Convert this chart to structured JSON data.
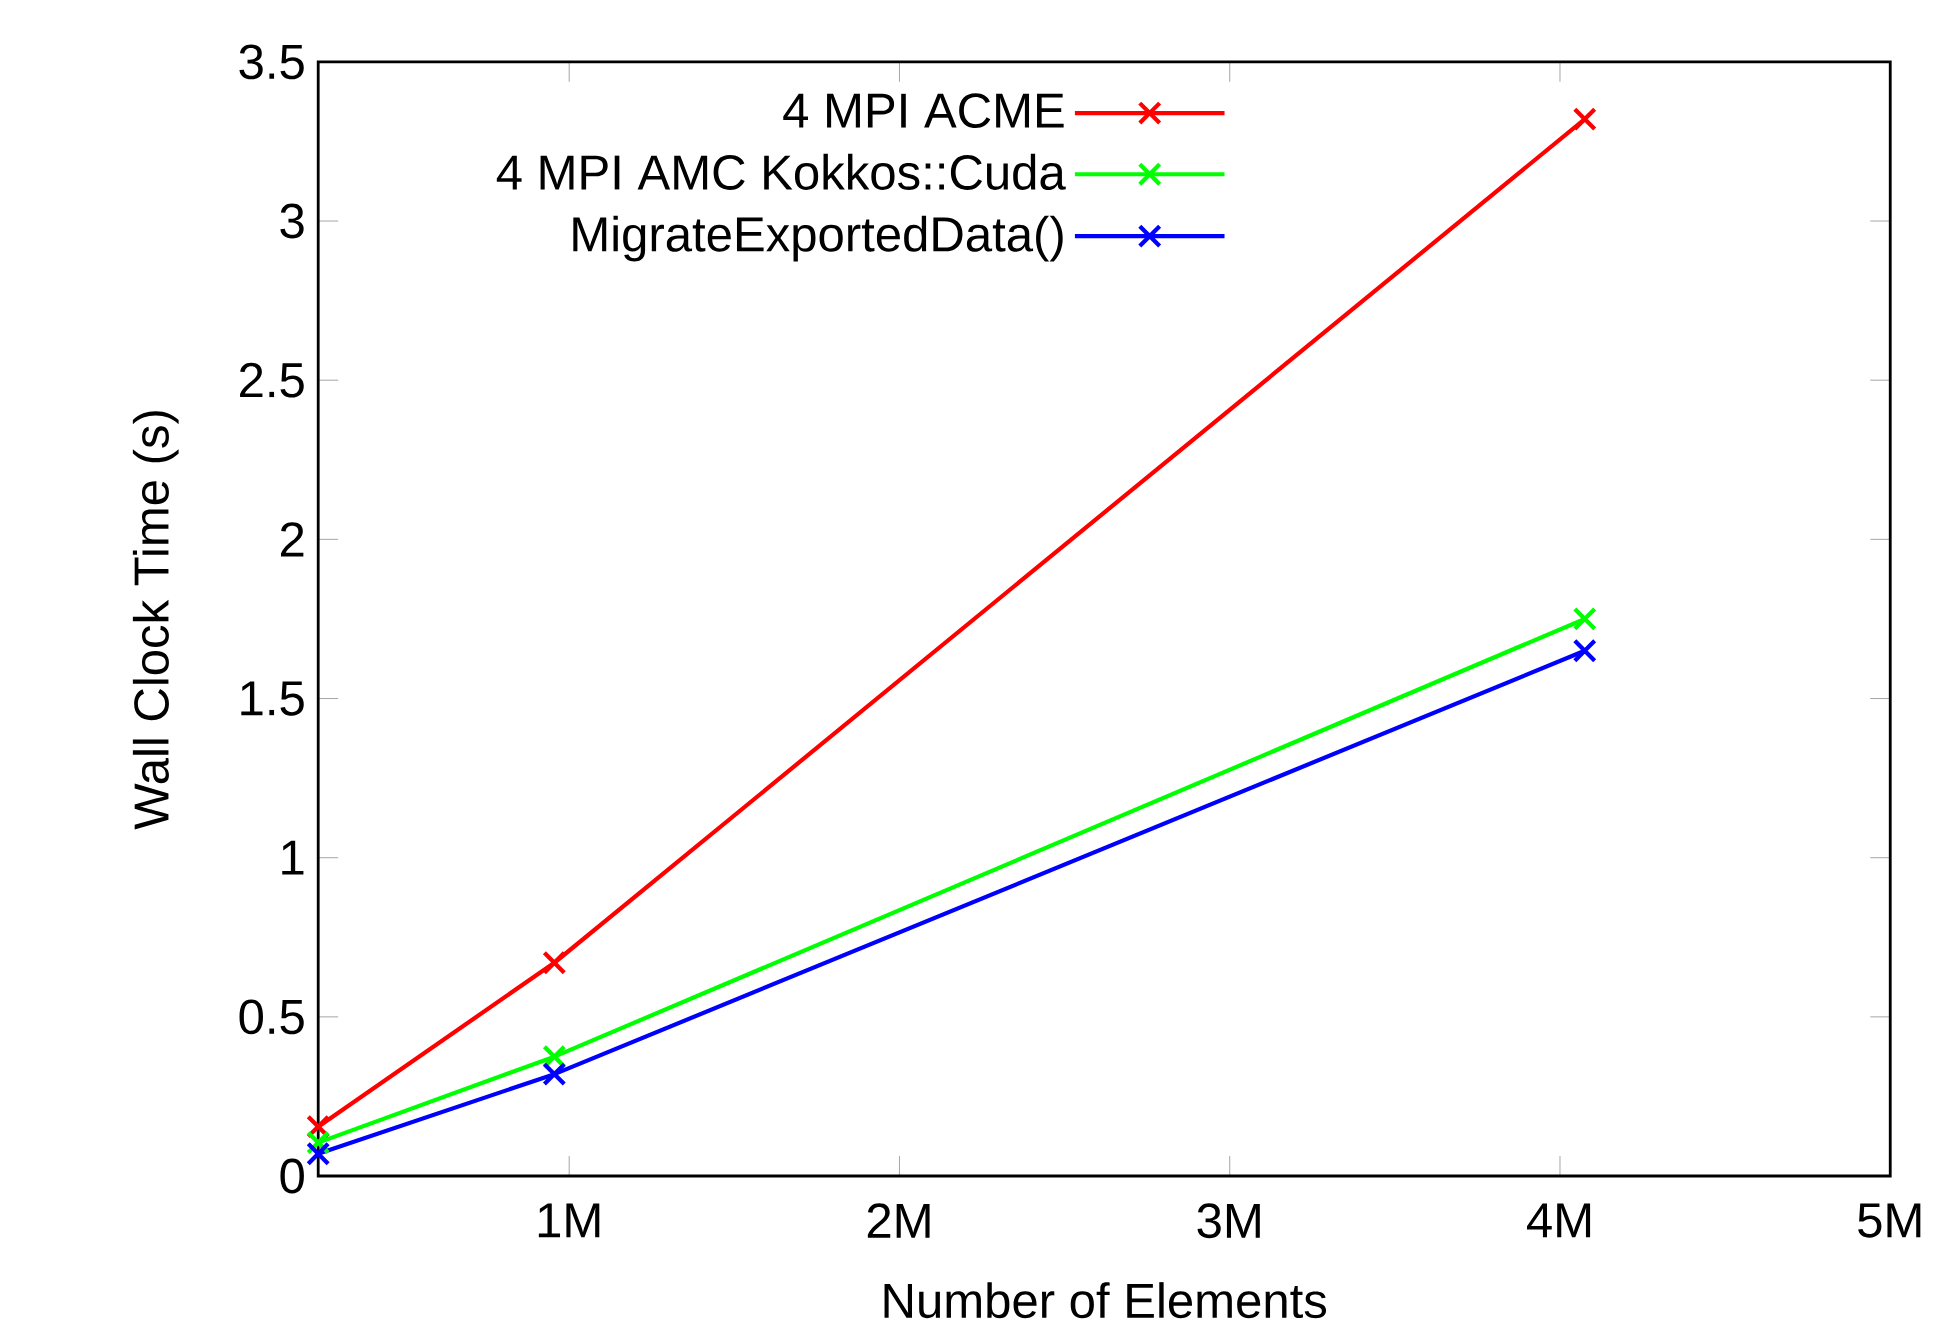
{
  "chart_data": {
    "type": "line",
    "xlabel": "Number of Elements",
    "ylabel": "Wall Clock Time (s)",
    "xlim": [
      240000,
      5000000
    ],
    "ylim": [
      0,
      3.5
    ],
    "xticks": [
      {
        "value": 1000000,
        "label": "1M"
      },
      {
        "value": 2000000,
        "label": "2M"
      },
      {
        "value": 3000000,
        "label": "3M"
      },
      {
        "value": 4000000,
        "label": "4M"
      },
      {
        "value": 5000000,
        "label": "5M"
      }
    ],
    "yticks": [
      0,
      0.5,
      1,
      1.5,
      2,
      2.5,
      3,
      3.5
    ],
    "x": [
      240000,
      955000,
      4075000
    ],
    "legend": "top",
    "series": [
      {
        "name": "4 MPI ACME",
        "color": "#ff0000",
        "marker": "cross",
        "values": [
          0.155,
          0.67,
          3.32
        ]
      },
      {
        "name": "4 MPI AMC Kokkos::Cuda",
        "color": "#00ff00",
        "marker": "cross",
        "values": [
          0.105,
          0.375,
          1.75
        ]
      },
      {
        "name": "MigrateExportedData()",
        "color": "#0000ff",
        "marker": "cross",
        "values": [
          0.07,
          0.32,
          1.65
        ]
      }
    ]
  }
}
